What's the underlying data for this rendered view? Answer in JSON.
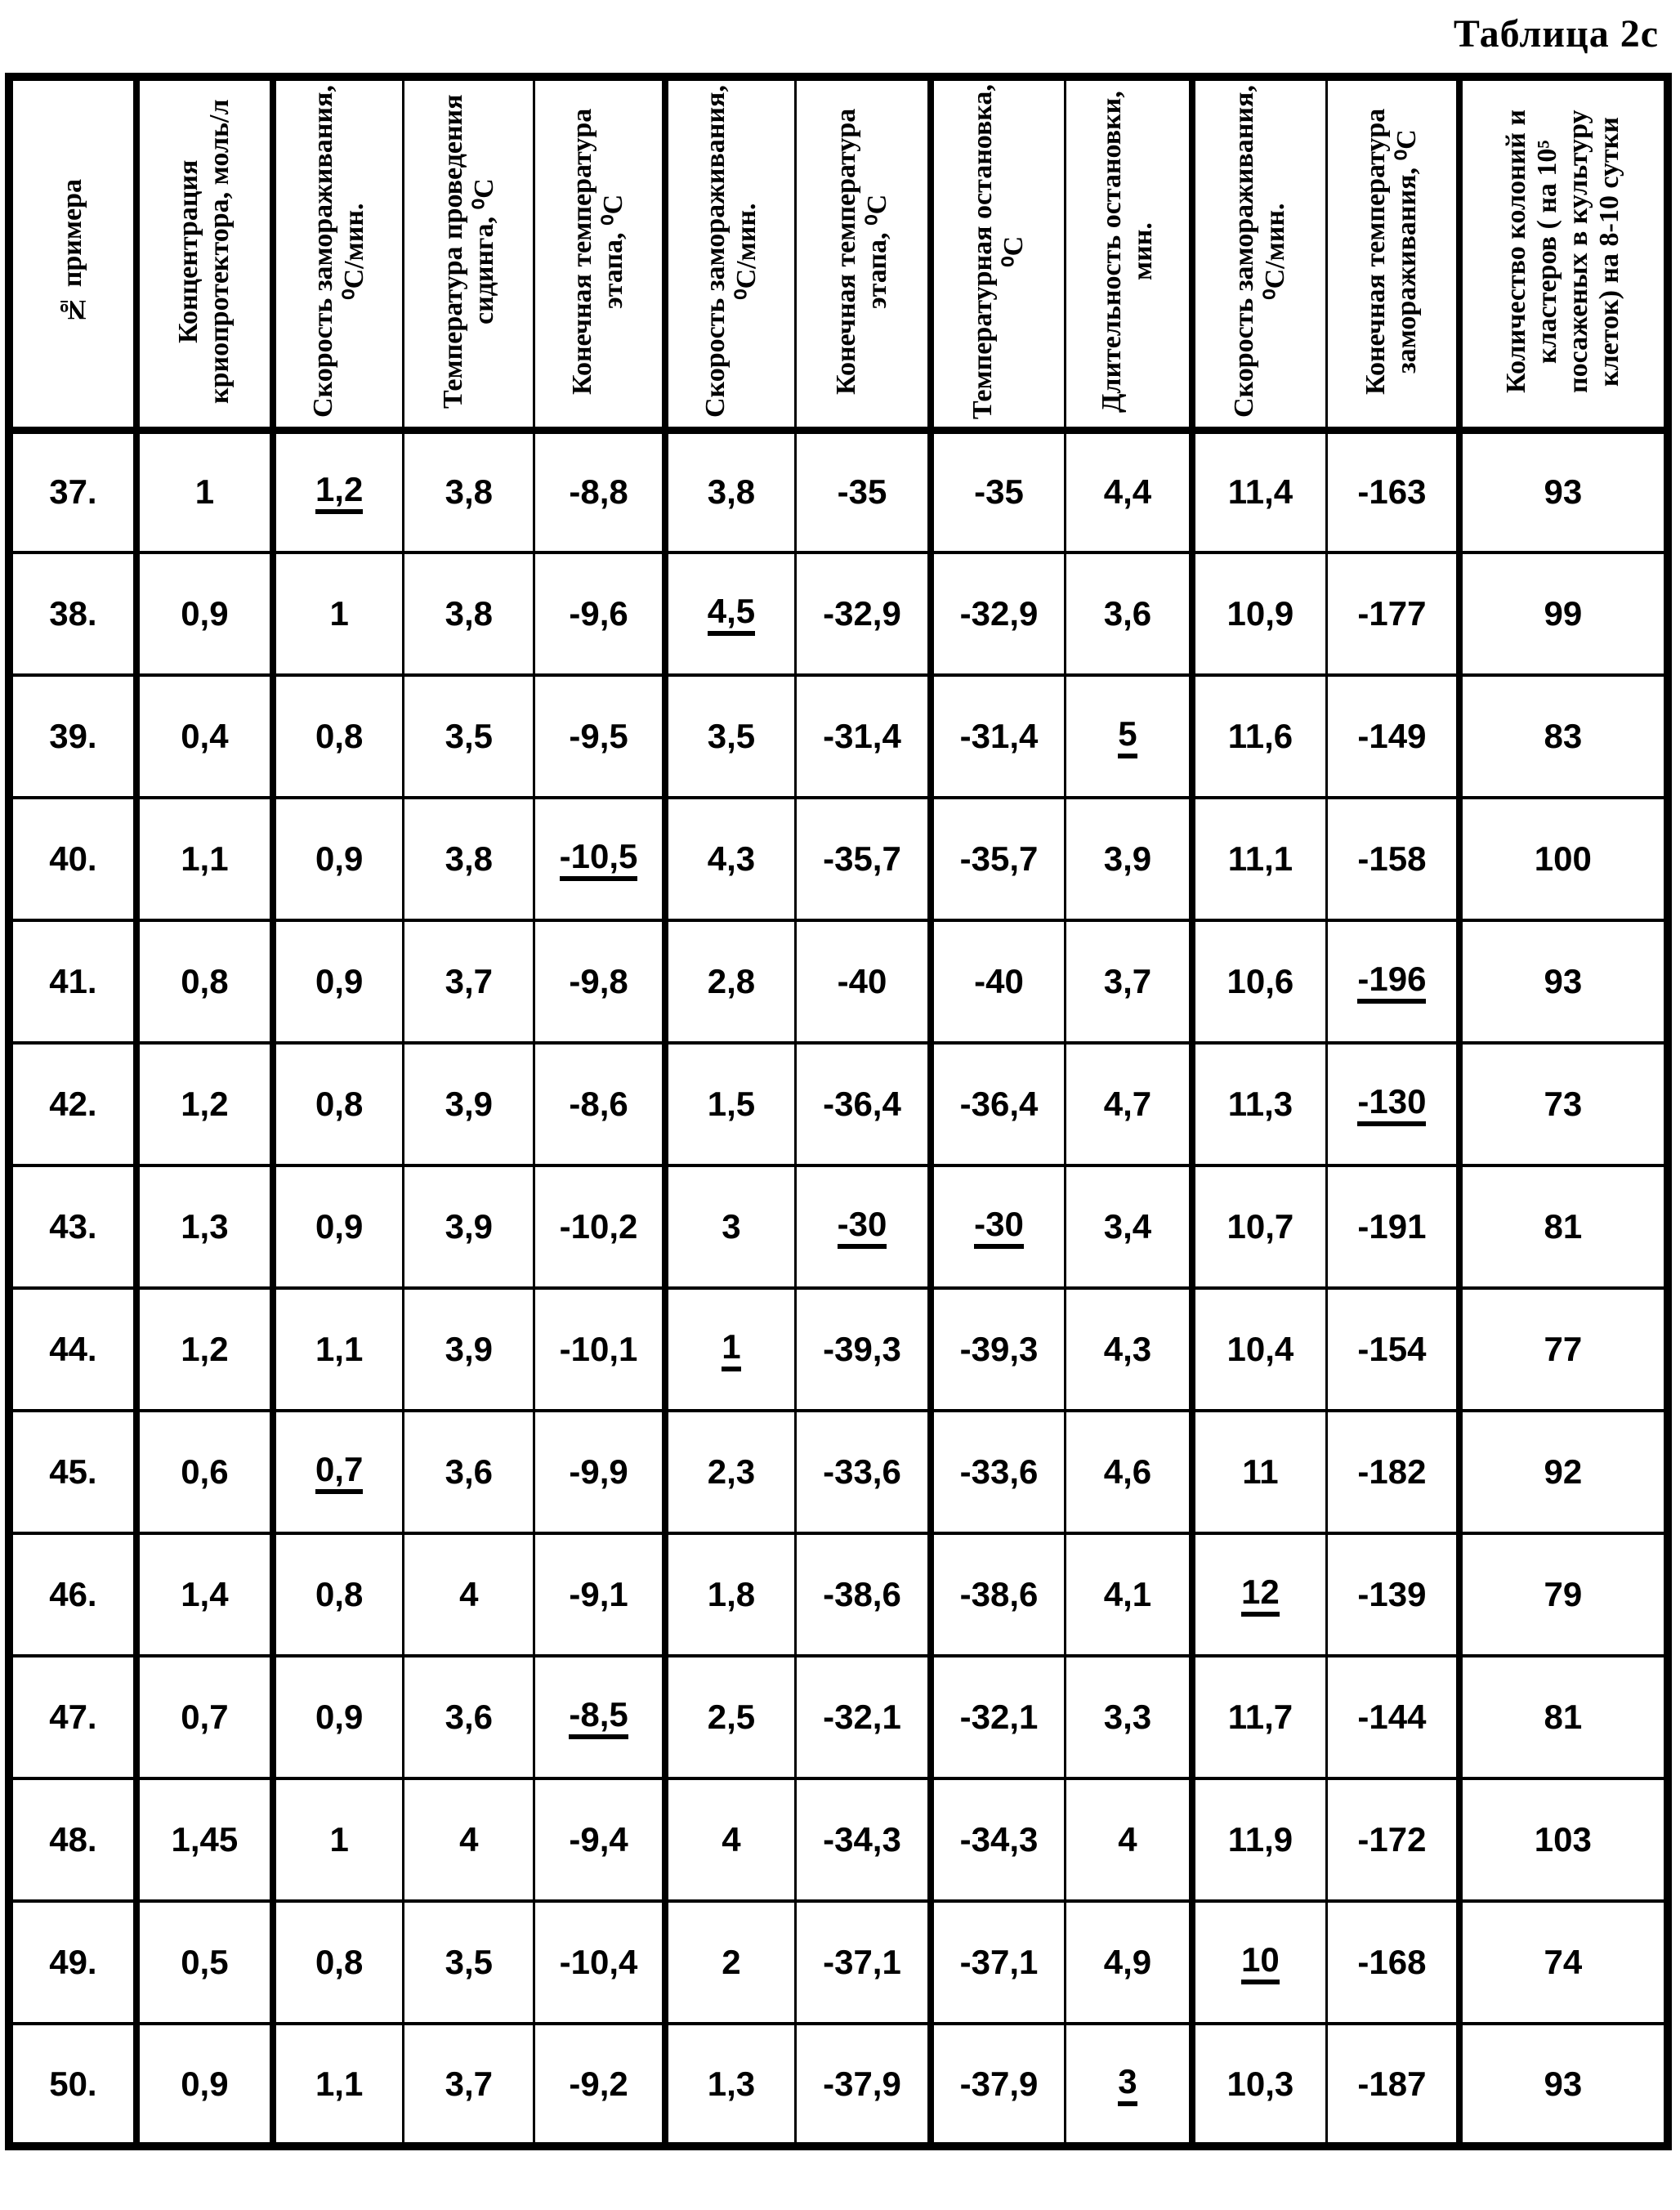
{
  "title": "Таблица 2с",
  "table": {
    "columns": [
      {
        "label": "№ примера"
      },
      {
        "label": "Концентрация криопротектора, моль/л"
      },
      {
        "label": "Скорость замораживания, ⁰С/мин."
      },
      {
        "label": "Температура проведения сидинга, ⁰С"
      },
      {
        "label": "Конечная температура этапа, ⁰С"
      },
      {
        "label": "Скорость замораживания, ⁰С/мин."
      },
      {
        "label": "Конечная температура этапа, ⁰С"
      },
      {
        "label": "Температурная остановка, ⁰С"
      },
      {
        "label": "Длительность остановки, мин."
      },
      {
        "label": "Скорость замораживания, ⁰С/мин."
      },
      {
        "label": "Конечная температура замораживания, ⁰С"
      },
      {
        "label": "Количество колоний и кластеров ( на 10⁵ посаженых в культуру клеток) на 8-10 сутки"
      }
    ],
    "rows": [
      {
        "cells": [
          {
            "t": "37."
          },
          {
            "t": "1"
          },
          {
            "t": "1,2",
            "u": true
          },
          {
            "t": "3,8"
          },
          {
            "t": "-8,8"
          },
          {
            "t": "3,8"
          },
          {
            "t": "-35"
          },
          {
            "t": "-35"
          },
          {
            "t": "4,4"
          },
          {
            "t": "11,4"
          },
          {
            "t": "-163"
          },
          {
            "t": "93"
          }
        ]
      },
      {
        "cells": [
          {
            "t": "38."
          },
          {
            "t": "0,9"
          },
          {
            "t": "1"
          },
          {
            "t": "3,8"
          },
          {
            "t": "-9,6"
          },
          {
            "t": "4,5",
            "u": true
          },
          {
            "t": "-32,9"
          },
          {
            "t": "-32,9"
          },
          {
            "t": "3,6"
          },
          {
            "t": "10,9"
          },
          {
            "t": "-177"
          },
          {
            "t": "99"
          }
        ]
      },
      {
        "cells": [
          {
            "t": "39."
          },
          {
            "t": "0,4"
          },
          {
            "t": "0,8"
          },
          {
            "t": "3,5"
          },
          {
            "t": "-9,5"
          },
          {
            "t": "3,5"
          },
          {
            "t": "-31,4"
          },
          {
            "t": "-31,4"
          },
          {
            "t": "5",
            "u": true
          },
          {
            "t": "11,6"
          },
          {
            "t": "-149"
          },
          {
            "t": "83"
          }
        ]
      },
      {
        "cells": [
          {
            "t": "40."
          },
          {
            "t": "1,1"
          },
          {
            "t": "0,9"
          },
          {
            "t": "3,8"
          },
          {
            "t": "-10,5",
            "u": true
          },
          {
            "t": "4,3"
          },
          {
            "t": "-35,7"
          },
          {
            "t": "-35,7"
          },
          {
            "t": "3,9"
          },
          {
            "t": "11,1"
          },
          {
            "t": "-158"
          },
          {
            "t": "100"
          }
        ]
      },
      {
        "cells": [
          {
            "t": "41."
          },
          {
            "t": "0,8"
          },
          {
            "t": "0,9"
          },
          {
            "t": "3,7"
          },
          {
            "t": "-9,8"
          },
          {
            "t": "2,8"
          },
          {
            "t": "-40"
          },
          {
            "t": "-40"
          },
          {
            "t": "3,7"
          },
          {
            "t": "10,6"
          },
          {
            "t": "-196",
            "u": true
          },
          {
            "t": "93"
          }
        ]
      },
      {
        "cells": [
          {
            "t": "42."
          },
          {
            "t": "1,2"
          },
          {
            "t": "0,8"
          },
          {
            "t": "3,9"
          },
          {
            "t": "-8,6"
          },
          {
            "t": "1,5"
          },
          {
            "t": "-36,4"
          },
          {
            "t": "-36,4"
          },
          {
            "t": "4,7"
          },
          {
            "t": "11,3"
          },
          {
            "t": "-130",
            "u": true
          },
          {
            "t": "73"
          }
        ]
      },
      {
        "cells": [
          {
            "t": "43."
          },
          {
            "t": "1,3"
          },
          {
            "t": "0,9"
          },
          {
            "t": "3,9"
          },
          {
            "t": "-10,2"
          },
          {
            "t": "3"
          },
          {
            "t": "-30",
            "u": true
          },
          {
            "t": "-30",
            "u": true
          },
          {
            "t": "3,4"
          },
          {
            "t": "10,7"
          },
          {
            "t": "-191"
          },
          {
            "t": "81"
          }
        ]
      },
      {
        "cells": [
          {
            "t": "44."
          },
          {
            "t": "1,2"
          },
          {
            "t": "1,1"
          },
          {
            "t": "3,9"
          },
          {
            "t": "-10,1"
          },
          {
            "t": "1",
            "u": true
          },
          {
            "t": "-39,3"
          },
          {
            "t": "-39,3"
          },
          {
            "t": "4,3"
          },
          {
            "t": "10,4"
          },
          {
            "t": "-154"
          },
          {
            "t": "77"
          }
        ]
      },
      {
        "cells": [
          {
            "t": "45."
          },
          {
            "t": "0,6"
          },
          {
            "t": "0,7",
            "u": true
          },
          {
            "t": "3,6"
          },
          {
            "t": "-9,9"
          },
          {
            "t": "2,3"
          },
          {
            "t": "-33,6"
          },
          {
            "t": "-33,6"
          },
          {
            "t": "4,6"
          },
          {
            "t": "11"
          },
          {
            "t": "-182"
          },
          {
            "t": "92"
          }
        ]
      },
      {
        "cells": [
          {
            "t": "46."
          },
          {
            "t": "1,4"
          },
          {
            "t": "0,8"
          },
          {
            "t": "4"
          },
          {
            "t": "-9,1"
          },
          {
            "t": "1,8"
          },
          {
            "t": "-38,6"
          },
          {
            "t": "-38,6"
          },
          {
            "t": "4,1"
          },
          {
            "t": "12",
            "u": true
          },
          {
            "t": "-139"
          },
          {
            "t": "79"
          }
        ]
      },
      {
        "cells": [
          {
            "t": "47."
          },
          {
            "t": "0,7"
          },
          {
            "t": "0,9"
          },
          {
            "t": "3,6"
          },
          {
            "t": "-8,5",
            "u": true
          },
          {
            "t": "2,5"
          },
          {
            "t": "-32,1"
          },
          {
            "t": "-32,1"
          },
          {
            "t": "3,3"
          },
          {
            "t": "11,7"
          },
          {
            "t": "-144"
          },
          {
            "t": "81"
          }
        ]
      },
      {
        "cells": [
          {
            "t": "48."
          },
          {
            "t": "1,45"
          },
          {
            "t": "1"
          },
          {
            "t": "4"
          },
          {
            "t": "-9,4"
          },
          {
            "t": "4"
          },
          {
            "t": "-34,3"
          },
          {
            "t": "-34,3"
          },
          {
            "t": "4"
          },
          {
            "t": "11,9"
          },
          {
            "t": "-172"
          },
          {
            "t": "103"
          }
        ]
      },
      {
        "cells": [
          {
            "t": "49."
          },
          {
            "t": "0,5"
          },
          {
            "t": "0,8"
          },
          {
            "t": "3,5"
          },
          {
            "t": "-10,4"
          },
          {
            "t": "2"
          },
          {
            "t": "-37,1"
          },
          {
            "t": "-37,1"
          },
          {
            "t": "4,9"
          },
          {
            "t": "10",
            "u": true
          },
          {
            "t": "-168"
          },
          {
            "t": "74"
          }
        ]
      },
      {
        "cells": [
          {
            "t": "50."
          },
          {
            "t": "0,9"
          },
          {
            "t": "1,1"
          },
          {
            "t": "3,7"
          },
          {
            "t": "-9,2"
          },
          {
            "t": "1,3"
          },
          {
            "t": "-37,9"
          },
          {
            "t": "-37,9"
          },
          {
            "t": "3",
            "u": true
          },
          {
            "t": "10,3"
          },
          {
            "t": "-187"
          },
          {
            "t": "93"
          }
        ]
      }
    ]
  }
}
